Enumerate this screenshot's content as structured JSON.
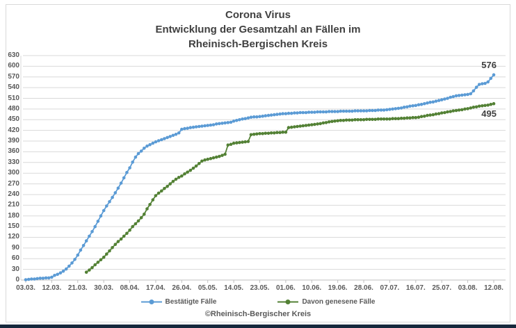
{
  "title": {
    "lines": [
      "Corona Virus",
      "Entwicklung der Gesamtzahl an Fällen im",
      "Rheinisch-Bergischen Kreis"
    ]
  },
  "footer": {
    "copyright": "©Rheinisch-Bergischer Kreis"
  },
  "colors": {
    "confirmed": "#5B9BD5",
    "recovered": "#538135",
    "grid": "#D9D9D9",
    "axis": "#BFBFBF",
    "title_text": "#404040",
    "axis_text": "#595959",
    "border": "#D9D9D9",
    "bottom_bar": "#16283C"
  },
  "chart_data": {
    "type": "line",
    "title": "Corona Virus Entwicklung der Gesamtzahl an Fällen im Rheinisch-Bergischen Kreis",
    "x_frequency": "daily",
    "x_start_date": "03.03.",
    "x_end_date": "12.08.",
    "x_tick_labels": [
      "03.03.",
      "12.03.",
      "21.03.",
      "30.03.",
      "08.04.",
      "17.04.",
      "26.04.",
      "05.05.",
      "14.05.",
      "23.05.",
      "01.06.",
      "10.06.",
      "19.06.",
      "28.06.",
      "07.07.",
      "16.07.",
      "25.07.",
      "03.08.",
      "12.08."
    ],
    "x_days_per_tick": 9,
    "ylim": [
      0,
      630
    ],
    "y_tick_step": 30,
    "grid": true,
    "legend_position": "bottom",
    "series": [
      {
        "name": "Bestätigte Fälle",
        "color": "#5B9BD5",
        "start_day_index": 0,
        "end_label": "576",
        "values": [
          1,
          2,
          3,
          3,
          4,
          5,
          5,
          6,
          6,
          8,
          13,
          16,
          20,
          25,
          31,
          39,
          48,
          58,
          70,
          84,
          97,
          110,
          123,
          136,
          150,
          165,
          180,
          195,
          208,
          220,
          232,
          245,
          258,
          272,
          287,
          302,
          315,
          331,
          345,
          355,
          362,
          370,
          376,
          380,
          384,
          388,
          391,
          394,
          397,
          400,
          403,
          406,
          409,
          413,
          423,
          425,
          426,
          428,
          429,
          430,
          431,
          432,
          433,
          434,
          435,
          436,
          438,
          439,
          440,
          441,
          442,
          443,
          446,
          448,
          450,
          452,
          453,
          455,
          457,
          458,
          458,
          459,
          460,
          461,
          462,
          463,
          464,
          465,
          466,
          467,
          467,
          468,
          468,
          469,
          469,
          470,
          470,
          470,
          471,
          471,
          471,
          472,
          472,
          472,
          472,
          473,
          473,
          473,
          473,
          474,
          474,
          474,
          474,
          474,
          475,
          475,
          475,
          475,
          475,
          476,
          476,
          476,
          477,
          477,
          477,
          478,
          479,
          480,
          481,
          482,
          483,
          485,
          486,
          488,
          489,
          490,
          492,
          493,
          495,
          497,
          499,
          500,
          502,
          504,
          506,
          508,
          510,
          513,
          515,
          517,
          518,
          519,
          520,
          521,
          523,
          531,
          541,
          549,
          551,
          552,
          556,
          566,
          576
        ]
      },
      {
        "name": "Davon genesene Fälle",
        "color": "#538135",
        "start_day_index": 21,
        "end_label": "495",
        "values": [
          22,
          28,
          35,
          43,
          50,
          57,
          64,
          73,
          82,
          91,
          100,
          108,
          115,
          123,
          131,
          140,
          150,
          158,
          166,
          175,
          185,
          200,
          212,
          225,
          237,
          244,
          250,
          257,
          263,
          270,
          277,
          283,
          288,
          292,
          298,
          303,
          308,
          314,
          320,
          327,
          334,
          337,
          339,
          341,
          343,
          345,
          347,
          350,
          353,
          379,
          381,
          384,
          385,
          386,
          387,
          388,
          389,
          408,
          409,
          410,
          411,
          411,
          412,
          412,
          413,
          413,
          414,
          414,
          415,
          415,
          428,
          429,
          430,
          431,
          432,
          433,
          434,
          435,
          436,
          437,
          438,
          439,
          441,
          442,
          444,
          445,
          446,
          447,
          448,
          448,
          449,
          449,
          449,
          450,
          450,
          450,
          450,
          451,
          451,
          451,
          451,
          452,
          452,
          452,
          452,
          452,
          453,
          453,
          453,
          454,
          454,
          455,
          455,
          456,
          456,
          457,
          459,
          460,
          462,
          463,
          464,
          466,
          467,
          469,
          470,
          472,
          473,
          475,
          476,
          477,
          478,
          480,
          481,
          483,
          485,
          486,
          488,
          489,
          490,
          491,
          493,
          495
        ]
      }
    ]
  }
}
